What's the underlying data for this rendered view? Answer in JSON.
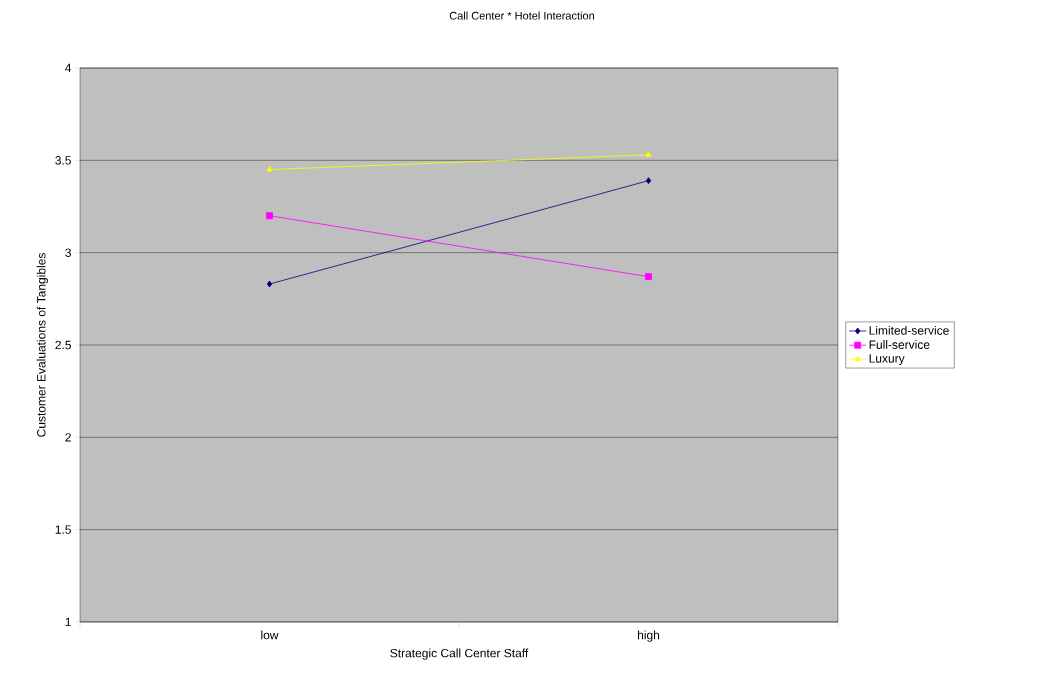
{
  "chart_data": {
    "type": "line",
    "title": "Call Center * Hotel Interaction",
    "xlabel": "Strategic Call Center Staff",
    "ylabel": "Customer Evaluations of Tangibles",
    "categories": [
      "low",
      "high"
    ],
    "series": [
      {
        "name": "Limited-service",
        "color": "#000080",
        "values": [
          2.83,
          3.39
        ],
        "marker": "diamond"
      },
      {
        "name": "Full-service",
        "color": "#ff00ff",
        "values": [
          3.2,
          2.87
        ],
        "marker": "square"
      },
      {
        "name": "Luxury",
        "color": "#ffff00",
        "values": [
          3.45,
          3.53
        ],
        "marker": "triangle"
      }
    ],
    "ylim": [
      1,
      4
    ],
    "yticks": [
      1,
      1.5,
      2,
      2.5,
      3,
      3.5,
      4
    ],
    "grid": "y",
    "legend": "right"
  }
}
